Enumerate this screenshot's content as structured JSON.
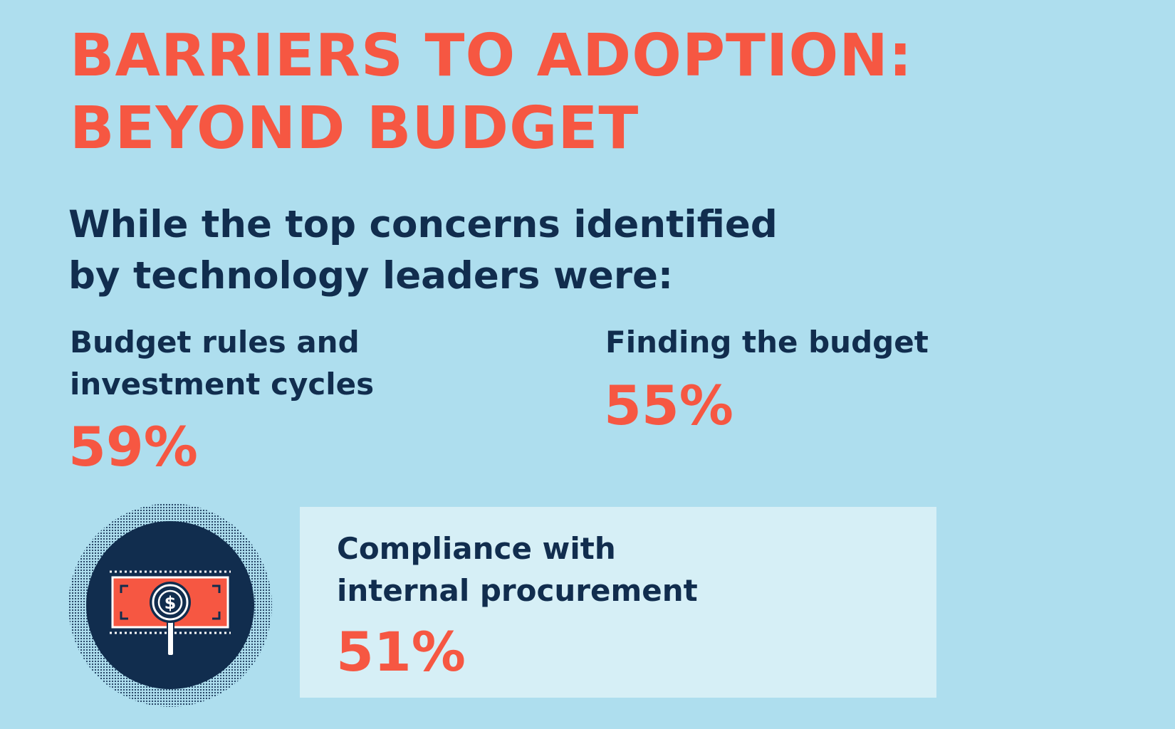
{
  "heading": {
    "line1": "BARRIERS TO ADOPTION:",
    "line2": "BEYOND BUDGET"
  },
  "intro": {
    "line1": "While the top concerns identified",
    "line2": "by technology leaders were:"
  },
  "stats": [
    {
      "label_line1": "Budget rules and",
      "label_line2": "investment cycles",
      "value": "59%",
      "percent": 59
    },
    {
      "label_line1": "Finding the budget",
      "value": "55%",
      "percent": 55
    },
    {
      "label_line1": "Compliance with",
      "label_line2": "internal procurement",
      "value": "51%",
      "percent": 51
    }
  ],
  "icon": {
    "name": "money-magnifier-icon",
    "glyph": "$"
  },
  "colors": {
    "background": "#aedeee",
    "accent": "#f65742",
    "text": "#112d4e",
    "panel": "#d6eff6"
  }
}
